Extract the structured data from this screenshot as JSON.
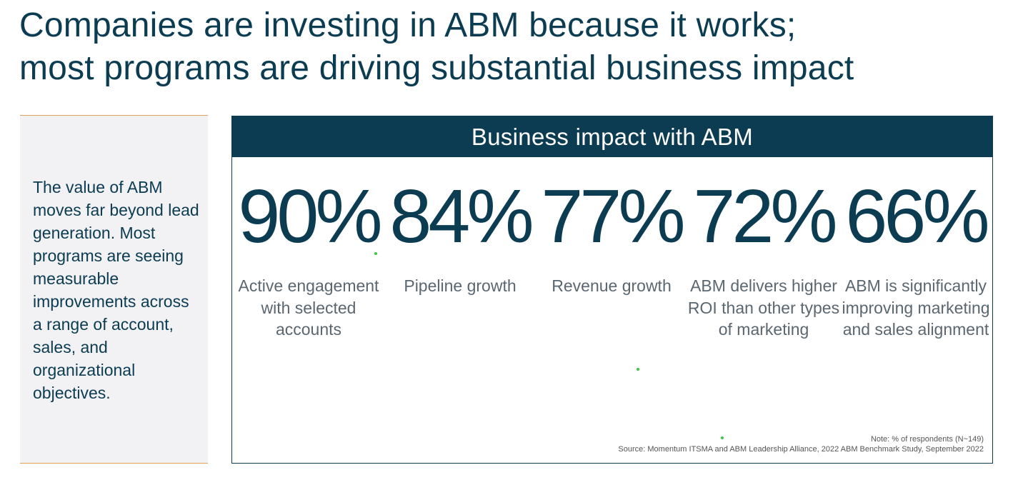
{
  "title": {
    "line1": "Companies are investing in ABM because it works;",
    "line2": "most programs are driving substantial business impact"
  },
  "side_panel": {
    "text": "The value of ABM moves far beyond lead generation. Most programs are seeing measurable improvements across a range of account, sales, and organizational objectives."
  },
  "impact": {
    "header": "Business impact with ABM",
    "stats": [
      {
        "value": "90%",
        "label": "Active engagement with selected accounts"
      },
      {
        "value": "84%",
        "label": "Pipeline growth"
      },
      {
        "value": "77%",
        "label": "Revenue growth"
      },
      {
        "value": "72%",
        "label": "ABM delivers higher ROI than other types of marketing"
      },
      {
        "value": "66%",
        "label": "ABM is significantly improving marketing and sales alignment"
      }
    ],
    "note": "Note: % of respondents (N~149)",
    "source": "Source: Momentum ITSMA and ABM Leadership Alliance, 2022 ABM Benchmark Study, September 2022"
  },
  "colors": {
    "primary": "#0b3c52",
    "label_gray": "#5b6770",
    "panel_bg": "#f2f1f4",
    "accent_line": "#e2a25a"
  }
}
